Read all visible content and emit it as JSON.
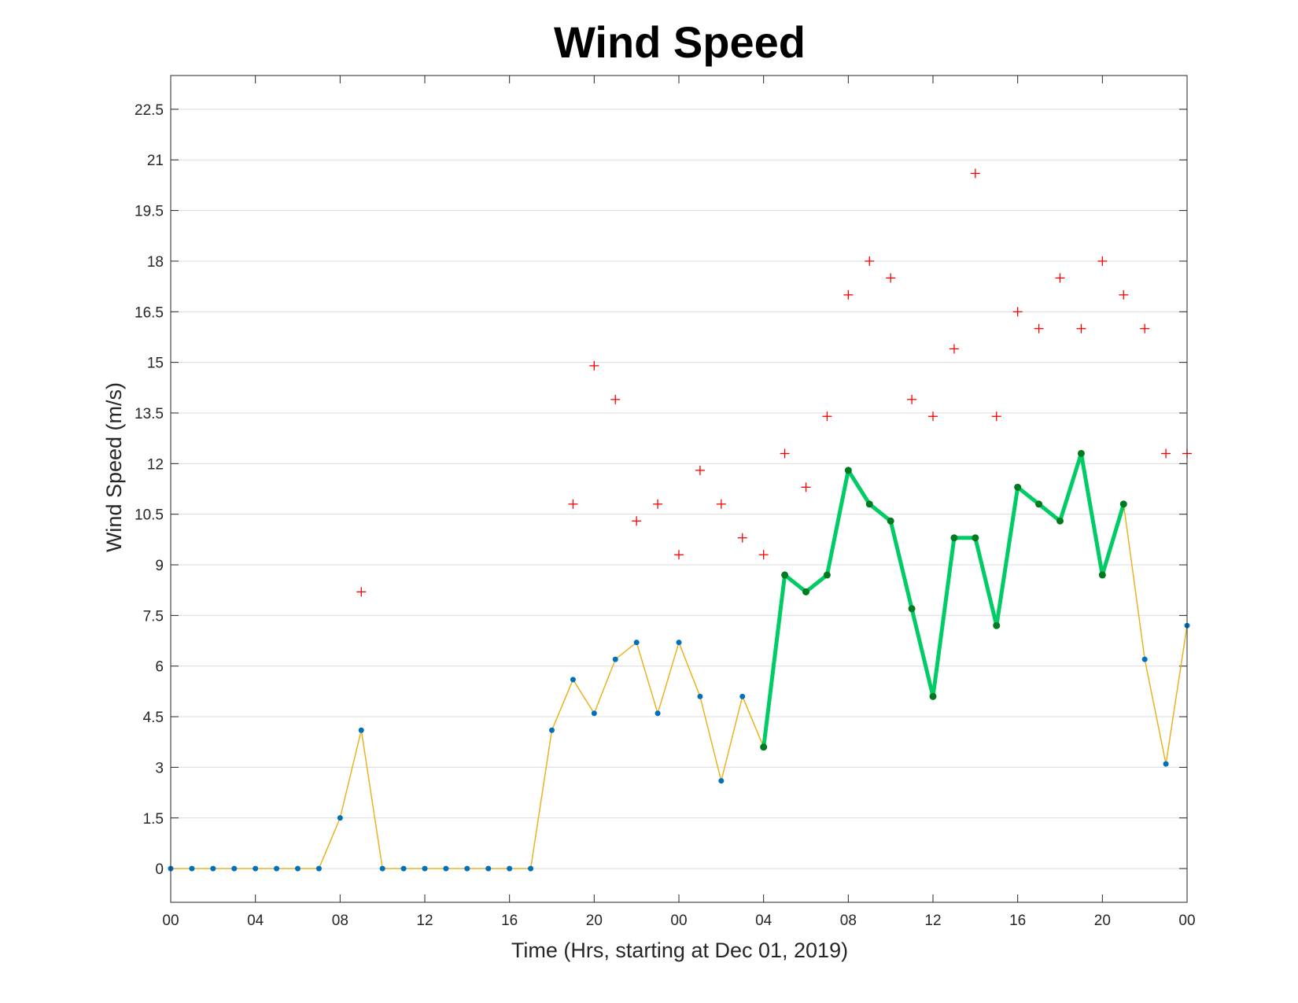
{
  "chart_data": {
    "type": "line",
    "title": "Wind Speed",
    "xlabel": "Time (Hrs, starting at Dec 01, 2019)",
    "ylabel": "Wind Speed (m/s)",
    "x_start": "2019-12-01 00:00",
    "x_tick_labels": [
      "00",
      "04",
      "08",
      "12",
      "16",
      "20",
      "00",
      "04",
      "08",
      "12",
      "16",
      "20",
      "00"
    ],
    "y_tick_labels": [
      "0",
      "1.5",
      "3",
      "4.5",
      "6",
      "7.5",
      "9",
      "10.5",
      "12",
      "13.5",
      "15",
      "16.5",
      "18",
      "19.5",
      "21",
      "22.5"
    ],
    "ylim": [
      -1,
      23.5
    ],
    "grid": "horizontal",
    "colors": {
      "speed_line": "#EDB120",
      "speed_marker": "#0072BD",
      "highlight_line": "#00CC66",
      "highlight_marker": "#007A1F",
      "gust": "#FF0000"
    },
    "series": [
      {
        "name": "",
        "marker": "dot",
        "x": [
          "2019-12-01 00:00",
          "2019-12-01 01:00",
          "2019-12-01 02:00",
          "2019-12-01 03:00",
          "2019-12-01 04:00",
          "2019-12-01 05:00",
          "2019-12-01 06:00",
          "2019-12-01 07:00",
          "2019-12-01 08:00",
          "2019-12-01 09:00",
          "2019-12-01 10:00",
          "2019-12-01 11:00",
          "2019-12-01 12:00",
          "2019-12-01 13:00",
          "2019-12-01 14:00",
          "2019-12-01 15:00",
          "2019-12-01 16:00",
          "2019-12-01 17:00",
          "2019-12-01 18:00",
          "2019-12-01 19:00",
          "2019-12-01 20:00",
          "2019-12-01 21:00",
          "2019-12-01 22:00",
          "2019-12-01 23:00",
          "2019-12-02 00:00",
          "2019-12-02 01:00",
          "2019-12-02 02:00",
          "2019-12-02 03:00",
          "2019-12-02 04:00",
          "2019-12-02 05:00",
          "2019-12-02 06:00",
          "2019-12-02 07:00",
          "2019-12-02 08:00",
          "2019-12-02 09:00",
          "2019-12-02 10:00",
          "2019-12-02 11:00",
          "2019-12-02 12:00",
          "2019-12-02 13:00",
          "2019-12-02 14:00",
          "2019-12-02 15:00",
          "2019-12-02 16:00",
          "2019-12-02 17:00",
          "2019-12-02 18:00",
          "2019-12-02 19:00",
          "2019-12-02 20:00",
          "2019-12-02 21:00",
          "2019-12-02 22:00",
          "2019-12-02 23:00",
          "2019-12-03 00:00"
        ],
        "y": [
          0,
          0,
          0,
          0,
          0,
          0,
          0,
          0,
          1.5,
          4.1,
          0,
          0,
          0,
          0,
          0,
          0,
          0,
          0,
          4.1,
          5.6,
          4.6,
          6.2,
          6.7,
          4.6,
          6.7,
          5.1,
          2.6,
          5.1,
          3.6,
          8.7,
          8.2,
          8.7,
          11.8,
          10.8,
          10.3,
          7.7,
          5.1,
          9.8,
          9.8,
          7.2,
          11.3,
          10.8,
          10.3,
          12.3,
          8.7,
          10.8,
          6.2,
          3.1,
          7.2
        ]
      },
      {
        "name": "",
        "marker": "dot",
        "x": [
          "2019-12-02 04:00",
          "2019-12-02 05:00",
          "2019-12-02 06:00",
          "2019-12-02 07:00",
          "2019-12-02 08:00",
          "2019-12-02 09:00",
          "2019-12-02 10:00",
          "2019-12-02 11:00",
          "2019-12-02 12:00",
          "2019-12-02 13:00",
          "2019-12-02 14:00",
          "2019-12-02 15:00",
          "2019-12-02 16:00",
          "2019-12-02 17:00",
          "2019-12-02 18:00",
          "2019-12-02 19:00",
          "2019-12-02 20:00",
          "2019-12-02 21:00"
        ],
        "y": [
          3.6,
          8.7,
          8.2,
          8.7,
          11.8,
          10.8,
          10.3,
          7.7,
          5.1,
          9.8,
          9.8,
          7.2,
          11.3,
          10.8,
          10.3,
          12.3,
          8.7,
          10.8
        ]
      },
      {
        "name": "",
        "marker": "plus",
        "x": [
          "2019-12-01 09:00",
          "2019-12-01 19:00",
          "2019-12-01 20:00",
          "2019-12-01 21:00",
          "2019-12-01 22:00",
          "2019-12-01 23:00",
          "2019-12-02 00:00",
          "2019-12-02 01:00",
          "2019-12-02 02:00",
          "2019-12-02 03:00",
          "2019-12-02 04:00",
          "2019-12-02 05:00",
          "2019-12-02 06:00",
          "2019-12-02 07:00",
          "2019-12-02 08:00",
          "2019-12-02 09:00",
          "2019-12-02 10:00",
          "2019-12-02 11:00",
          "2019-12-02 12:00",
          "2019-12-02 13:00",
          "2019-12-02 14:00",
          "2019-12-02 15:00",
          "2019-12-02 16:00",
          "2019-12-02 17:00",
          "2019-12-02 18:00",
          "2019-12-02 19:00",
          "2019-12-02 20:00",
          "2019-12-02 21:00",
          "2019-12-02 22:00",
          "2019-12-02 23:00",
          "2019-12-03 00:00"
        ],
        "y": [
          8.2,
          10.8,
          14.9,
          13.9,
          10.3,
          10.8,
          9.3,
          11.8,
          10.8,
          9.8,
          9.3,
          12.3,
          11.3,
          13.4,
          17,
          18,
          17.5,
          13.9,
          13.4,
          15.4,
          20.6,
          13.4,
          16.5,
          16,
          17.5,
          16,
          18,
          17,
          16,
          12.3,
          12.3
        ]
      }
    ]
  }
}
